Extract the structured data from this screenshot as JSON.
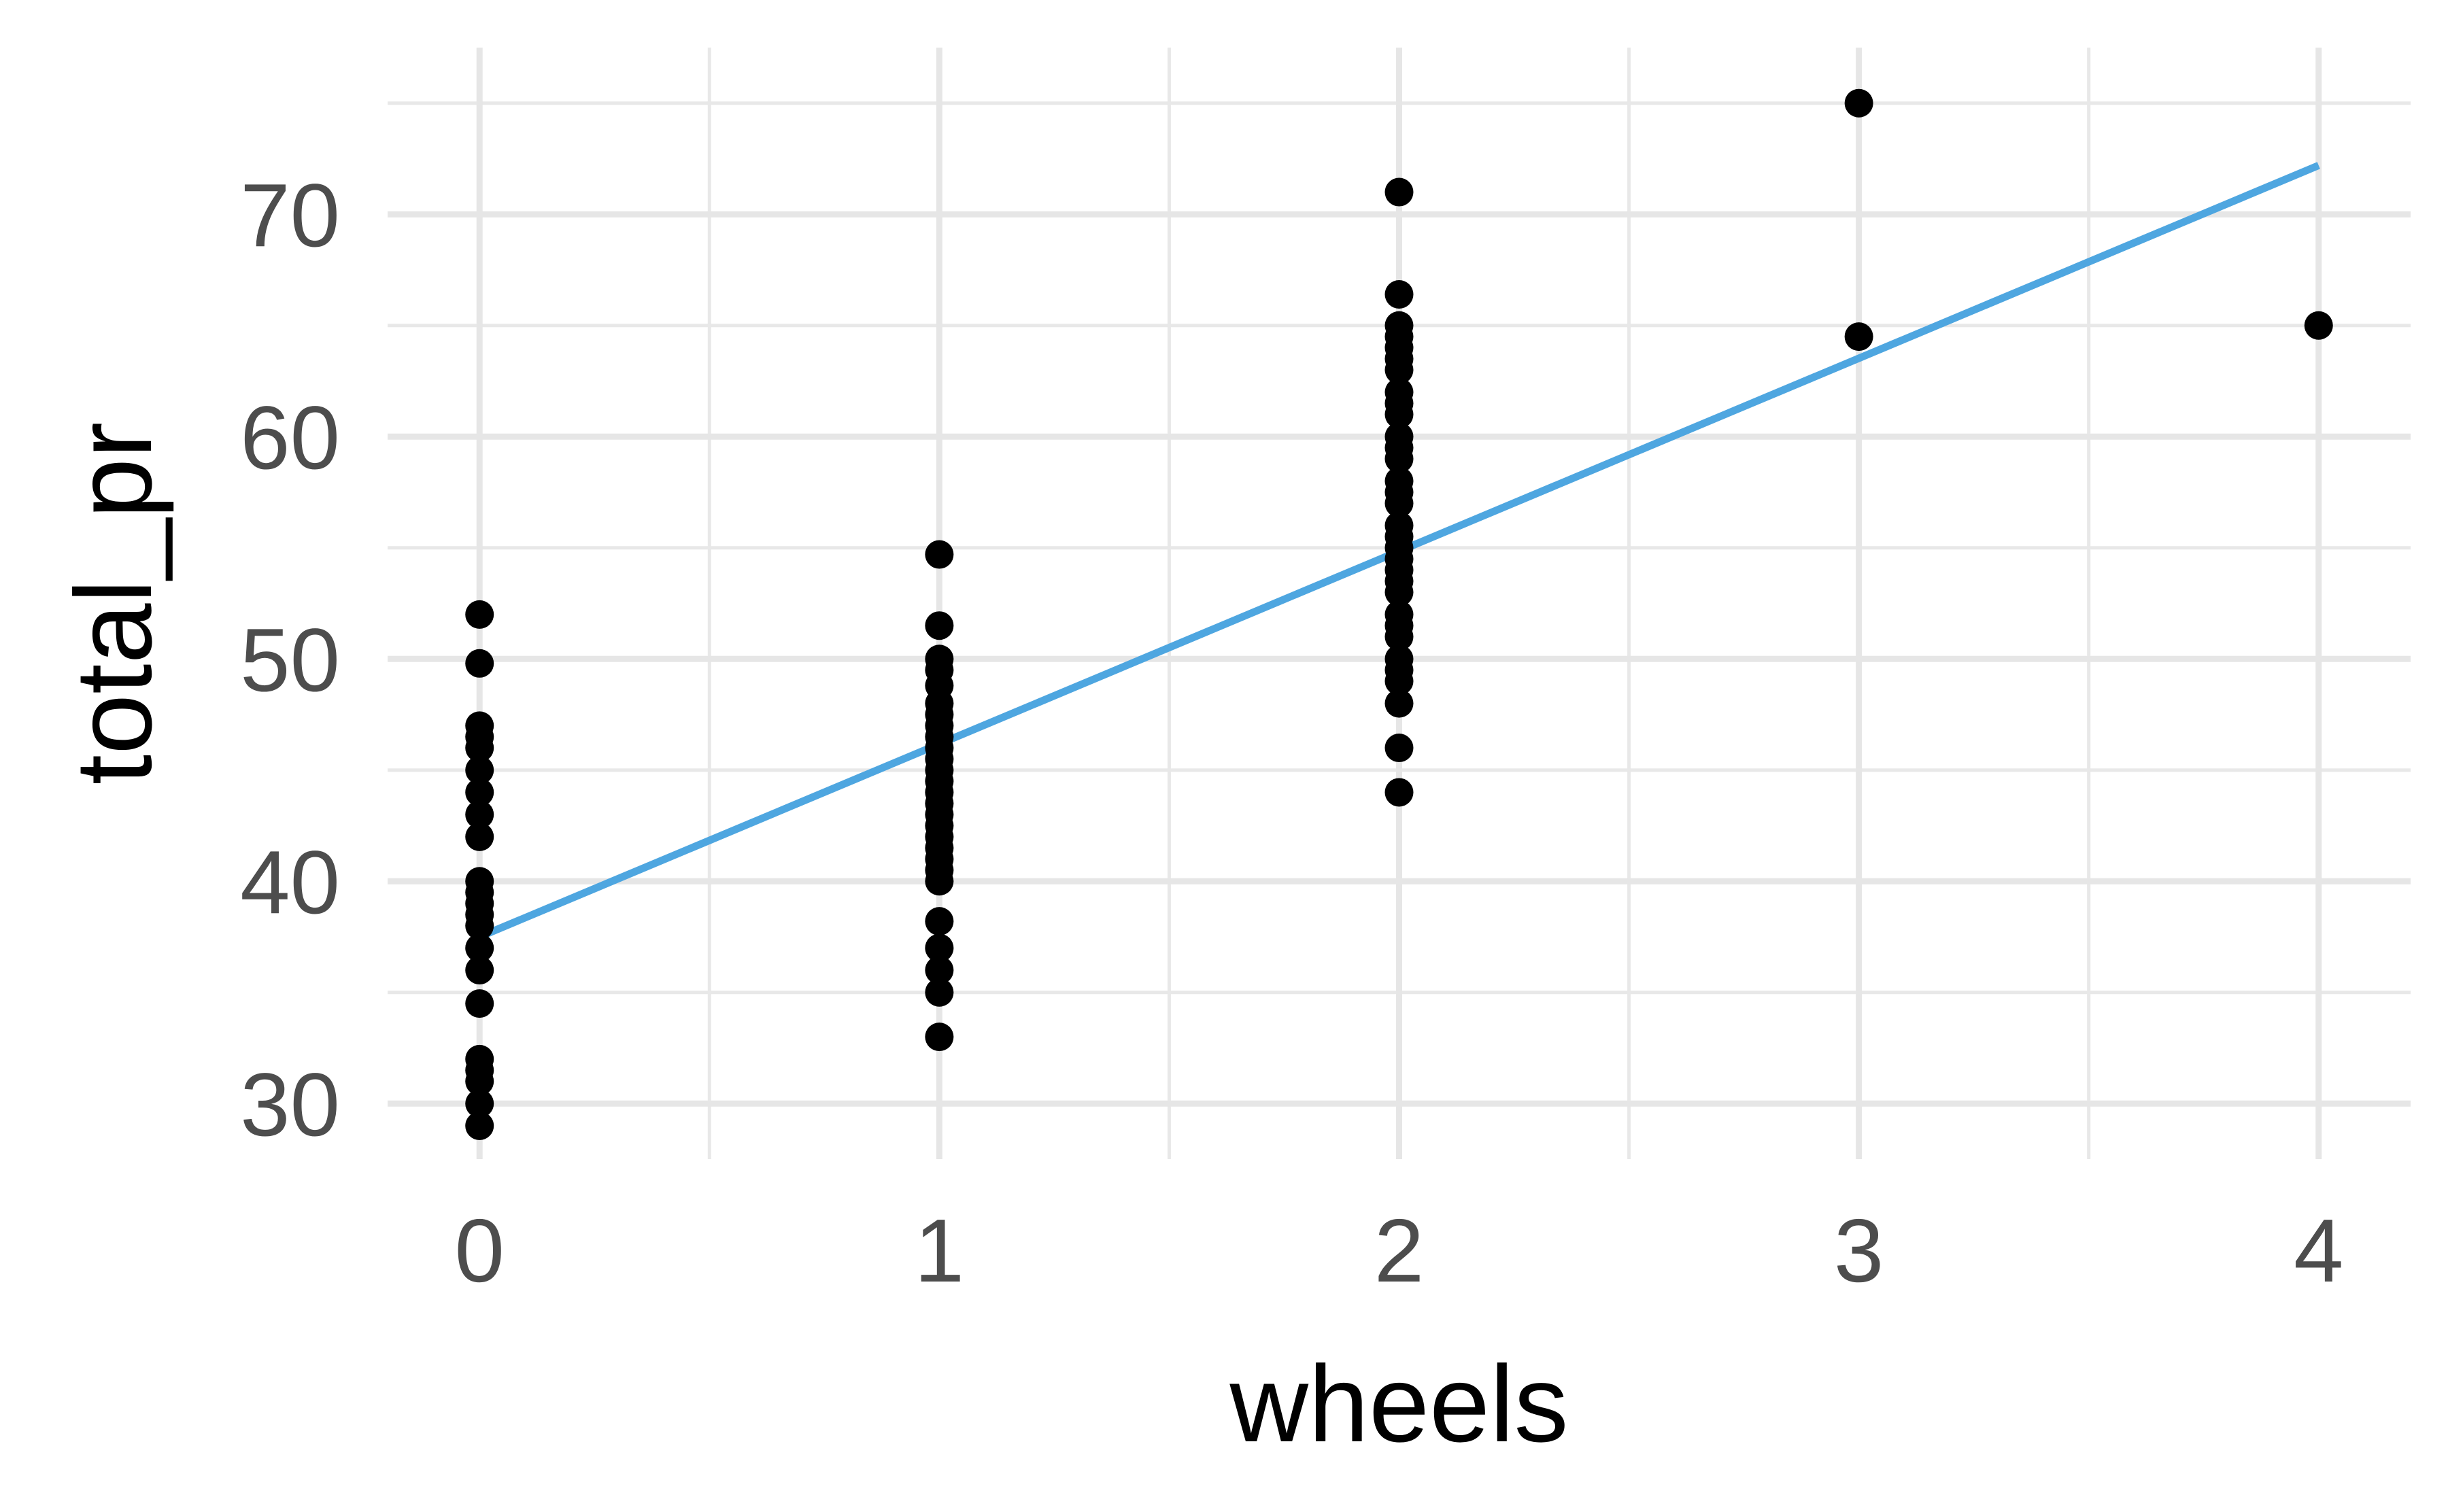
{
  "chart_data": {
    "type": "scatter",
    "xlabel": "wheels",
    "ylabel": "total_pr",
    "xlim": [
      -0.2,
      4.2
    ],
    "ylim": [
      27.5,
      77.5
    ],
    "x_major_ticks": [
      0,
      1,
      2,
      3,
      4
    ],
    "x_minor_ticks": [
      0.5,
      1.5,
      2.5,
      3.5
    ],
    "y_major_ticks": [
      30,
      40,
      50,
      60,
      70
    ],
    "y_minor_ticks": [
      35,
      45,
      55,
      65,
      75
    ],
    "x_tick_labels": [
      "0",
      "1",
      "2",
      "3",
      "4"
    ],
    "y_tick_labels": [
      "30",
      "40",
      "50",
      "60",
      "70"
    ],
    "grid": true,
    "legend": "none",
    "colors": {
      "points": "#000000",
      "fit_line": "#4ea6e0",
      "grid": "#e6e6e6",
      "tick_text": "#4d4d4d"
    },
    "points": [
      {
        "x": 0,
        "y": 52.0
      },
      {
        "x": 0,
        "y": 49.8
      },
      {
        "x": 0,
        "y": 47.0
      },
      {
        "x": 0,
        "y": 46.5
      },
      {
        "x": 0,
        "y": 46.0
      },
      {
        "x": 0,
        "y": 45.0
      },
      {
        "x": 0,
        "y": 44.0
      },
      {
        "x": 0,
        "y": 43.0
      },
      {
        "x": 0,
        "y": 42.0
      },
      {
        "x": 0,
        "y": 40.0
      },
      {
        "x": 0,
        "y": 39.5
      },
      {
        "x": 0,
        "y": 39.0
      },
      {
        "x": 0,
        "y": 38.5
      },
      {
        "x": 0,
        "y": 38.0
      },
      {
        "x": 0,
        "y": 37.0
      },
      {
        "x": 0,
        "y": 36.0
      },
      {
        "x": 0,
        "y": 34.5
      },
      {
        "x": 0,
        "y": 32.0
      },
      {
        "x": 0,
        "y": 31.5
      },
      {
        "x": 0,
        "y": 31.0
      },
      {
        "x": 0,
        "y": 30.0
      },
      {
        "x": 0,
        "y": 29.0
      },
      {
        "x": 1,
        "y": 54.7
      },
      {
        "x": 1,
        "y": 51.5
      },
      {
        "x": 1,
        "y": 50.0
      },
      {
        "x": 1,
        "y": 49.5
      },
      {
        "x": 1,
        "y": 48.8
      },
      {
        "x": 1,
        "y": 48.0
      },
      {
        "x": 1,
        "y": 47.5
      },
      {
        "x": 1,
        "y": 47.0
      },
      {
        "x": 1,
        "y": 46.5
      },
      {
        "x": 1,
        "y": 46.0
      },
      {
        "x": 1,
        "y": 45.5
      },
      {
        "x": 1,
        "y": 45.0
      },
      {
        "x": 1,
        "y": 44.5
      },
      {
        "x": 1,
        "y": 44.0
      },
      {
        "x": 1,
        "y": 43.5
      },
      {
        "x": 1,
        "y": 43.0
      },
      {
        "x": 1,
        "y": 42.5
      },
      {
        "x": 1,
        "y": 42.0
      },
      {
        "x": 1,
        "y": 41.5
      },
      {
        "x": 1,
        "y": 41.0
      },
      {
        "x": 1,
        "y": 40.5
      },
      {
        "x": 1,
        "y": 40.0
      },
      {
        "x": 1,
        "y": 38.2
      },
      {
        "x": 1,
        "y": 37.0
      },
      {
        "x": 1,
        "y": 36.0
      },
      {
        "x": 1,
        "y": 35.0
      },
      {
        "x": 1,
        "y": 33.0
      },
      {
        "x": 2,
        "y": 71.0
      },
      {
        "x": 2,
        "y": 66.4
      },
      {
        "x": 2,
        "y": 65.0
      },
      {
        "x": 2,
        "y": 64.5
      },
      {
        "x": 2,
        "y": 64.0
      },
      {
        "x": 2,
        "y": 63.5
      },
      {
        "x": 2,
        "y": 63.0
      },
      {
        "x": 2,
        "y": 62.0
      },
      {
        "x": 2,
        "y": 61.5
      },
      {
        "x": 2,
        "y": 61.0
      },
      {
        "x": 2,
        "y": 60.0
      },
      {
        "x": 2,
        "y": 59.5
      },
      {
        "x": 2,
        "y": 59.0
      },
      {
        "x": 2,
        "y": 58.0
      },
      {
        "x": 2,
        "y": 57.5
      },
      {
        "x": 2,
        "y": 57.0
      },
      {
        "x": 2,
        "y": 56.0
      },
      {
        "x": 2,
        "y": 55.5
      },
      {
        "x": 2,
        "y": 55.0
      },
      {
        "x": 2,
        "y": 54.5
      },
      {
        "x": 2,
        "y": 54.0
      },
      {
        "x": 2,
        "y": 53.5
      },
      {
        "x": 2,
        "y": 53.0
      },
      {
        "x": 2,
        "y": 52.0
      },
      {
        "x": 2,
        "y": 51.5
      },
      {
        "x": 2,
        "y": 51.0
      },
      {
        "x": 2,
        "y": 50.0
      },
      {
        "x": 2,
        "y": 49.5
      },
      {
        "x": 2,
        "y": 49.0
      },
      {
        "x": 2,
        "y": 48.0
      },
      {
        "x": 2,
        "y": 46.0
      },
      {
        "x": 2,
        "y": 44.0
      },
      {
        "x": 3,
        "y": 75.0
      },
      {
        "x": 3,
        "y": 64.5
      },
      {
        "x": 4,
        "y": 65.0
      }
    ],
    "fit_line": {
      "x": [
        0,
        4
      ],
      "y": [
        37.5,
        72.2
      ]
    }
  }
}
